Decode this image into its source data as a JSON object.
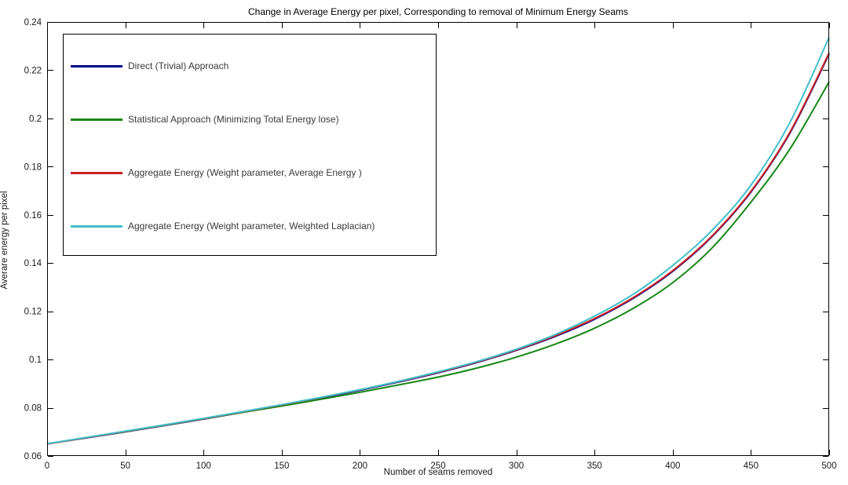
{
  "figure": {
    "title": "Change in Average Energy per pixel, Corresponding to removal of Minimum Energy Seams",
    "xlabel": "Number of seams removed",
    "ylabel": "Averare energy per pixel"
  },
  "colors": {
    "axis": "#000000",
    "background": "#ffffff",
    "series_blue": "#00008B",
    "series_green": "#168716",
    "series_red": "#CC2222",
    "series_cyan": "#41BFC9"
  },
  "legend": {
    "position": "upper left",
    "items": [
      {
        "label": "Direct (Trivial) Approach",
        "color": "#00008B"
      },
      {
        "label": "Statistical Approach (Minimizing Total Energy lose)",
        "color": "#168716"
      },
      {
        "label": "Aggregate Energy (Weight parameter, Average Energy )",
        "color": "#CC2222"
      },
      {
        "label": "Aggregate Energy (Weight parameter, Weighted Laplacian)",
        "color": "#41BFC9"
      }
    ]
  },
  "chart_data": {
    "type": "line",
    "title": "Change in Average Energy per pixel, Corresponding to removal of Minimum Energy Seams",
    "xlabel": "Number of seams removed",
    "ylabel": "Averare energy per pixel",
    "xlim": [
      0,
      500
    ],
    "ylim": [
      0.06,
      0.24
    ],
    "grid": false,
    "legend_position": "upper left",
    "x_ticks": [
      0,
      50,
      100,
      150,
      200,
      250,
      300,
      350,
      400,
      450,
      500
    ],
    "x_tick_labels": [
      "0",
      "50",
      "100",
      "150",
      "200",
      "250",
      "300",
      "350",
      "400",
      "450",
      "500"
    ],
    "y_ticks": [
      0.06,
      0.08,
      0.1,
      0.12,
      0.14,
      0.16,
      0.18,
      0.2,
      0.22,
      0.24
    ],
    "y_tick_labels": [
      "0.06",
      "0.08",
      "0.1",
      "0.12",
      "0.14",
      "0.16",
      "0.18",
      "0.2",
      "0.22",
      "0.24"
    ],
    "x": [
      0,
      25,
      50,
      75,
      100,
      125,
      150,
      175,
      200,
      225,
      250,
      275,
      300,
      325,
      350,
      375,
      400,
      425,
      450,
      475,
      500
    ],
    "series": [
      {
        "name": "Direct (Trivial) Approach",
        "color": "#00008B",
        "values": [
          0.065,
          0.0675,
          0.07,
          0.0726,
          0.0753,
          0.0781,
          0.081,
          0.084,
          0.0872,
          0.0907,
          0.0945,
          0.0988,
          0.1038,
          0.1096,
          0.1167,
          0.1255,
          0.1366,
          0.1509,
          0.1695,
          0.194,
          0.2268
        ]
      },
      {
        "name": "Statistical Approach (Minimizing Total Energy lose)",
        "color": "#168716",
        "values": [
          0.065,
          0.0676,
          0.0701,
          0.0727,
          0.0754,
          0.0781,
          0.0807,
          0.0835,
          0.0864,
          0.0895,
          0.0927,
          0.0965,
          0.101,
          0.1064,
          0.113,
          0.1213,
          0.1319,
          0.1462,
          0.1653,
          0.1874,
          0.2152
        ]
      },
      {
        "name": "Aggregate Energy (Weight parameter, Average Energy )",
        "color": "#CC2222",
        "values": [
          0.065,
          0.0676,
          0.0702,
          0.0728,
          0.0755,
          0.0783,
          0.0812,
          0.0842,
          0.0874,
          0.0909,
          0.0947,
          0.099,
          0.104,
          0.1099,
          0.117,
          0.1258,
          0.1369,
          0.1512,
          0.1698,
          0.1944,
          0.2272
        ]
      },
      {
        "name": "Aggregate Energy (Weight parameter, Weighted Laplacian)",
        "color": "#41BFC9",
        "values": [
          0.0651,
          0.0677,
          0.0703,
          0.0729,
          0.0756,
          0.0784,
          0.0813,
          0.0843,
          0.0875,
          0.091,
          0.0949,
          0.0992,
          0.1043,
          0.1104,
          0.118,
          0.1272,
          0.139,
          0.1535,
          0.1723,
          0.1984,
          0.2337
        ]
      }
    ]
  }
}
